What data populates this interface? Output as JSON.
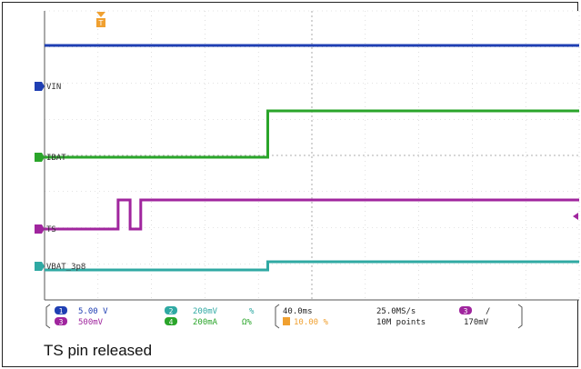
{
  "chart_data": {
    "type": "line",
    "xlim": [
      -200,
      200
    ],
    "xunit": "ms",
    "series": [
      {
        "name": "VIN",
        "color": "#1f3fb3",
        "label": "VIN",
        "points": [
          [
            -200,
            5.0
          ],
          [
            200,
            5.0
          ]
        ]
      },
      {
        "name": "IBAT",
        "color": "#2aa52a",
        "label": "IBAT",
        "points": [
          [
            -200,
            0
          ],
          [
            -33,
            0
          ],
          [
            -33,
            240
          ],
          [
            200,
            240
          ]
        ]
      },
      {
        "name": "TS",
        "color": "#a0259e",
        "label": "TS",
        "points": [
          [
            -200,
            0
          ],
          [
            -145,
            0
          ],
          [
            -145,
            1.15
          ],
          [
            -136,
            1.15
          ],
          [
            -136,
            0
          ],
          [
            -128,
            0
          ],
          [
            -128,
            1.15
          ],
          [
            200,
            1.15
          ]
        ]
      },
      {
        "name": "VBAT_3p8",
        "color": "#2fa9a3",
        "label": "VBAT_3p8",
        "points": [
          [
            -200,
            3.8
          ],
          [
            -33,
            3.8
          ],
          [
            -33,
            3.8025
          ],
          [
            200,
            3.8025
          ]
        ]
      }
    ],
    "readout": {
      "ch1": {
        "num": "1",
        "value": "5.00 V"
      },
      "ch3": {
        "num": "3",
        "value": "500mV"
      },
      "ch2": {
        "num": "2",
        "value": "200mV",
        "extra": "%"
      },
      "ch4": {
        "num": "4",
        "value": "200mA",
        "extra": "Ω%"
      },
      "timebase": "40.0ms",
      "trigpos": "10.00 %",
      "rate": "25.0MS/s",
      "points": "10M points",
      "trig_ch": "3",
      "trig_slope": "/",
      "trig_level": "170mV"
    },
    "trigger_marker": "T",
    "caption": "TS pin released"
  }
}
